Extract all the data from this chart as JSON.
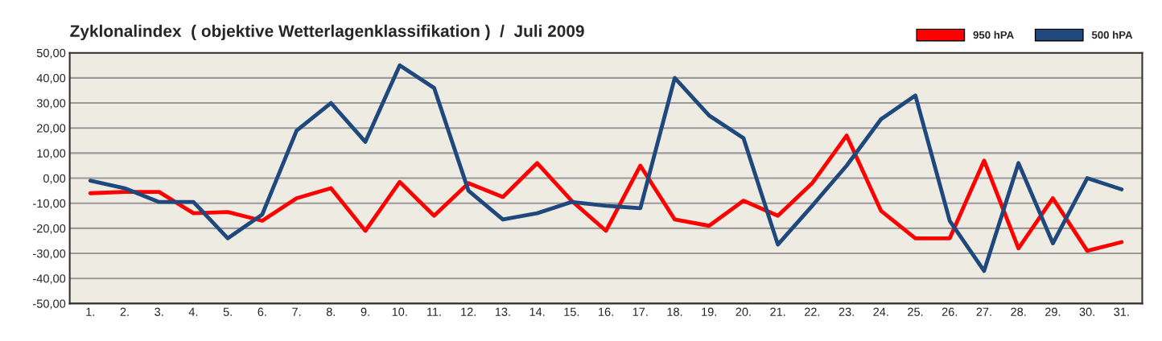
{
  "chart_data": {
    "type": "line",
    "title": "Zyklonalindex  ( objektive Wetterlagenklassifikation )  /  Juli 2009",
    "categories": [
      "1.",
      "2.",
      "3.",
      "4.",
      "5.",
      "6.",
      "7.",
      "8.",
      "9.",
      "10.",
      "11.",
      "12.",
      "13.",
      "14.",
      "15.",
      "16.",
      "17.",
      "18.",
      "19.",
      "20.",
      "21.",
      "22.",
      "23.",
      "24.",
      "25.",
      "26.",
      "27.",
      "28.",
      "29.",
      "30.",
      "31."
    ],
    "series": [
      {
        "name": "950 hPA",
        "color": "#ff0000",
        "values": [
          -6,
          -5.5,
          -5.5,
          -14,
          -13.5,
          -17,
          -8,
          -4,
          -21,
          -1.5,
          -15,
          -2,
          -7.5,
          6,
          -9,
          -21,
          5,
          -16.5,
          -19,
          -9,
          -15,
          -2,
          17,
          -13,
          -24,
          -24,
          7,
          -28,
          -8,
          -29,
          -25.5
        ]
      },
      {
        "name": "500 hPA",
        "color": "#1f497d",
        "values": [
          -1,
          -4,
          -9.5,
          -9.5,
          -24,
          -14.5,
          19,
          30,
          14.5,
          45,
          36,
          -5,
          -16.5,
          -14,
          -9.5,
          -11,
          -12,
          40,
          25,
          16,
          -26.5,
          -11,
          5,
          23.5,
          33,
          -17,
          -37,
          6,
          -26,
          0,
          -4.5
        ]
      }
    ],
    "ylim": [
      -50,
      50
    ],
    "yticks": [
      {
        "value": -50,
        "label": "-50,00"
      },
      {
        "value": -40,
        "label": "-40,00"
      },
      {
        "value": -30,
        "label": "-30,00"
      },
      {
        "value": -20,
        "label": "-20,00"
      },
      {
        "value": -10,
        "label": "-10,00"
      },
      {
        "value": 0,
        "label": "0,00"
      },
      {
        "value": 10,
        "label": "10,00"
      },
      {
        "value": 20,
        "label": "20,00"
      },
      {
        "value": 30,
        "label": "30,00"
      },
      {
        "value": 40,
        "label": "40,00"
      },
      {
        "value": 50,
        "label": "50,00"
      }
    ],
    "grid": "y",
    "legend": "top right",
    "line_style": "solid",
    "marker": "none"
  }
}
